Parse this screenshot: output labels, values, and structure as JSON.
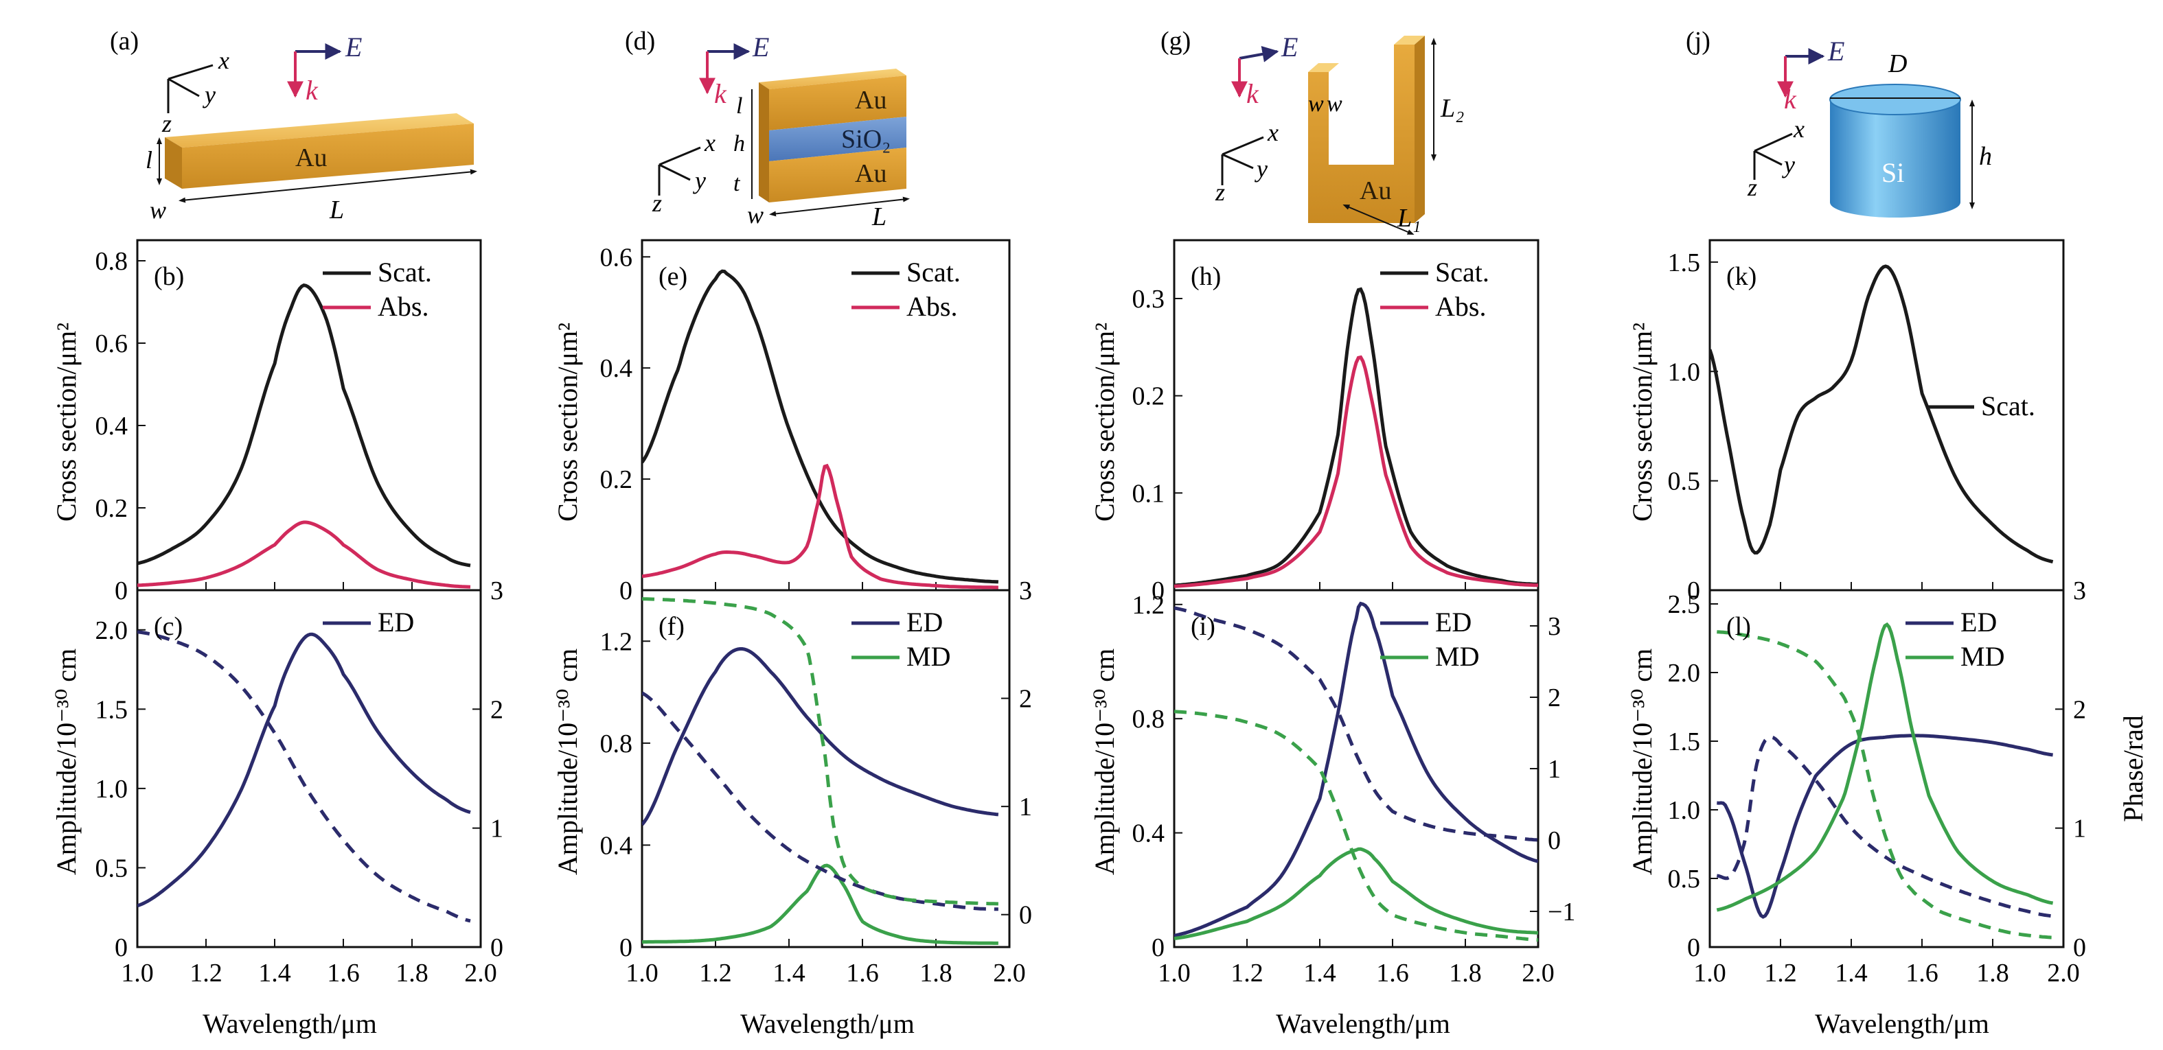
{
  "colors": {
    "gold": "#e2a73a",
    "gold_dark": "#b87d1c",
    "gold_light": "#f3c868",
    "sio2": "#5b86c8",
    "si": "#4a9fd8",
    "scat": "#1a1a1a",
    "abs": "#d12a5c",
    "ed": "#2b2b6b",
    "md": "#3aa14a",
    "e_arrow": "#2b2b6b",
    "k_arrow": "#d12a5c"
  },
  "labels": {
    "wavelength": "Wavelength/μm",
    "cross_section": "Cross section/μm²",
    "amplitude": "Amplitude/10⁻³⁰ cm",
    "phase": "Phase/rad",
    "scat": "Scat.",
    "abs": "Abs.",
    "ed": "ED",
    "md": "MD"
  },
  "schematics": [
    {
      "panel": "(a)",
      "material": "Au",
      "dims": [
        "l",
        "w",
        "L"
      ],
      "E": "E",
      "k": "k",
      "axes": [
        "x",
        "y",
        "z"
      ]
    },
    {
      "panel": "(d)",
      "materials": [
        "Au",
        "SiO₂",
        "Au"
      ],
      "dims": [
        "l",
        "h",
        "t",
        "w",
        "L"
      ],
      "E": "E",
      "k": "k",
      "axes": [
        "x",
        "y",
        "z"
      ]
    },
    {
      "panel": "(g)",
      "material": "Au",
      "dims": [
        "w",
        "w",
        "L₂",
        "L₁"
      ],
      "E": "E",
      "k": "k",
      "axes": [
        "x",
        "y",
        "z"
      ]
    },
    {
      "panel": "(j)",
      "material": "Si",
      "dims": [
        "D",
        "h"
      ],
      "E": "E",
      "k": "k",
      "axes": [
        "x",
        "y",
        "z"
      ]
    }
  ],
  "chart_data": [
    {
      "panel": "(b)",
      "type": "line",
      "xlim": [
        1.0,
        2.0
      ],
      "ylim": [
        0,
        0.85
      ],
      "xticks": [
        "1.0",
        "1.2",
        "1.4",
        "1.6",
        "1.8",
        "2.0"
      ],
      "yticks": [
        "0",
        "0.2",
        "0.4",
        "0.6",
        "0.8"
      ],
      "ylabel": "Cross section/μm²",
      "xlabel": "Wavelength/μm",
      "series": [
        {
          "name": "Scat.",
          "x": [
            1.0,
            1.1,
            1.2,
            1.3,
            1.4,
            1.45,
            1.49,
            1.55,
            1.6,
            1.7,
            1.8,
            1.9,
            1.97
          ],
          "y": [
            0.065,
            0.1,
            0.16,
            0.29,
            0.55,
            0.69,
            0.74,
            0.66,
            0.49,
            0.26,
            0.14,
            0.08,
            0.06
          ]
        },
        {
          "name": "Abs.",
          "x": [
            1.0,
            1.1,
            1.2,
            1.3,
            1.4,
            1.45,
            1.49,
            1.55,
            1.6,
            1.7,
            1.8,
            1.9,
            1.97
          ],
          "y": [
            0.012,
            0.018,
            0.03,
            0.06,
            0.11,
            0.15,
            0.165,
            0.145,
            0.11,
            0.05,
            0.025,
            0.012,
            0.008
          ]
        }
      ]
    },
    {
      "panel": "(c)",
      "type": "line",
      "xlim": [
        1.0,
        2.0
      ],
      "ylim": [
        0,
        2.25
      ],
      "y2lim": [
        0,
        3.0
      ],
      "xticks": [
        "1.0",
        "1.2",
        "1.4",
        "1.6",
        "1.8",
        "2.0"
      ],
      "yticks": [
        "0",
        "0.5",
        "1.0",
        "1.5",
        "2.0"
      ],
      "y2ticks": [
        "0",
        "1",
        "2",
        "3"
      ],
      "ylabel": "Amplitude/10⁻³⁰ cm",
      "xlabel": "Wavelength/μm",
      "series": [
        {
          "name": "ED",
          "x": [
            1.0,
            1.1,
            1.2,
            1.3,
            1.4,
            1.45,
            1.5,
            1.55,
            1.6,
            1.7,
            1.8,
            1.9,
            1.97
          ],
          "y": [
            0.26,
            0.4,
            0.62,
            0.98,
            1.52,
            1.82,
            1.97,
            1.9,
            1.72,
            1.36,
            1.1,
            0.93,
            0.85
          ]
        },
        {
          "name": "ED phase",
          "axis": "right",
          "x": [
            1.0,
            1.1,
            1.2,
            1.3,
            1.4,
            1.5,
            1.6,
            1.7,
            1.8,
            1.9,
            1.97
          ],
          "y": [
            2.65,
            2.58,
            2.45,
            2.2,
            1.8,
            1.3,
            0.9,
            0.6,
            0.42,
            0.3,
            0.22
          ]
        }
      ]
    },
    {
      "panel": "(e)",
      "type": "line",
      "xlim": [
        1.0,
        2.0
      ],
      "ylim": [
        0,
        0.63
      ],
      "xticks": [
        "1.0",
        "1.2",
        "1.4",
        "1.6",
        "1.8",
        "2.0"
      ],
      "yticks": [
        "0",
        "0.2",
        "0.4",
        "0.6"
      ],
      "ylabel": "Cross section/μm²",
      "xlabel": "Wavelength/μm",
      "series": [
        {
          "name": "Scat.",
          "x": [
            1.0,
            1.1,
            1.15,
            1.2,
            1.23,
            1.3,
            1.4,
            1.5,
            1.6,
            1.7,
            1.8,
            1.9,
            1.97
          ],
          "y": [
            0.23,
            0.4,
            0.5,
            0.56,
            0.57,
            0.5,
            0.29,
            0.14,
            0.07,
            0.04,
            0.025,
            0.018,
            0.015
          ]
        },
        {
          "name": "Abs.",
          "x": [
            1.0,
            1.1,
            1.2,
            1.25,
            1.3,
            1.4,
            1.45,
            1.48,
            1.5,
            1.53,
            1.57,
            1.65,
            1.8,
            1.97
          ],
          "y": [
            0.025,
            0.04,
            0.065,
            0.068,
            0.062,
            0.05,
            0.08,
            0.16,
            0.225,
            0.16,
            0.06,
            0.02,
            0.008,
            0.005
          ]
        }
      ]
    },
    {
      "panel": "(f)",
      "type": "line",
      "xlim": [
        1.0,
        2.0
      ],
      "ylim": [
        0,
        1.4
      ],
      "y2lim": [
        -0.3,
        3.0
      ],
      "xticks": [
        "1.0",
        "1.2",
        "1.4",
        "1.6",
        "1.8",
        "2.0"
      ],
      "yticks": [
        "0",
        "0.4",
        "0.8",
        "1.2"
      ],
      "y2ticks": [
        "0",
        "1",
        "2",
        "3"
      ],
      "ylabel": "Amplitude/10⁻³⁰ cm",
      "xlabel": "Wavelength/μm",
      "series": [
        {
          "name": "ED",
          "x": [
            1.0,
            1.1,
            1.2,
            1.27,
            1.35,
            1.45,
            1.55,
            1.65,
            1.75,
            1.85,
            1.97
          ],
          "y": [
            0.48,
            0.8,
            1.08,
            1.17,
            1.08,
            0.9,
            0.75,
            0.66,
            0.6,
            0.55,
            0.52
          ]
        },
        {
          "name": "MD",
          "x": [
            1.0,
            1.2,
            1.35,
            1.45,
            1.5,
            1.55,
            1.6,
            1.7,
            1.8,
            1.97
          ],
          "y": [
            0.02,
            0.03,
            0.08,
            0.22,
            0.32,
            0.24,
            0.1,
            0.04,
            0.02,
            0.015
          ]
        },
        {
          "name": "ED phase",
          "axis": "right",
          "x": [
            1.0,
            1.1,
            1.2,
            1.3,
            1.4,
            1.5,
            1.6,
            1.7,
            1.8,
            1.9,
            1.97
          ],
          "y": [
            2.05,
            1.7,
            1.3,
            0.9,
            0.6,
            0.4,
            0.25,
            0.15,
            0.1,
            0.06,
            0.05
          ]
        },
        {
          "name": "MD phase",
          "axis": "right",
          "x": [
            1.0,
            1.2,
            1.35,
            1.45,
            1.5,
            1.52,
            1.55,
            1.6,
            1.7,
            1.8,
            1.97
          ],
          "y": [
            2.92,
            2.88,
            2.78,
            2.45,
            1.45,
            0.85,
            0.45,
            0.25,
            0.15,
            0.12,
            0.1
          ]
        }
      ]
    },
    {
      "panel": "(h)",
      "type": "line",
      "xlim": [
        1.0,
        2.0
      ],
      "ylim": [
        0,
        0.36
      ],
      "xticks": [
        "1.0",
        "1.2",
        "1.4",
        "1.6",
        "1.8",
        "2.0"
      ],
      "yticks": [
        "0",
        "0.1",
        "0.2",
        "0.3"
      ],
      "ylabel": "Cross section/μm²",
      "xlabel": "Wavelength/μm",
      "series": [
        {
          "name": "Scat.",
          "x": [
            1.0,
            1.2,
            1.3,
            1.4,
            1.45,
            1.48,
            1.51,
            1.54,
            1.58,
            1.65,
            1.75,
            1.9,
            2.0
          ],
          "y": [
            0.005,
            0.015,
            0.03,
            0.08,
            0.16,
            0.26,
            0.31,
            0.26,
            0.15,
            0.06,
            0.025,
            0.01,
            0.006
          ]
        },
        {
          "name": "Abs.",
          "x": [
            1.0,
            1.2,
            1.3,
            1.4,
            1.45,
            1.48,
            1.51,
            1.54,
            1.58,
            1.65,
            1.75,
            1.9,
            2.0
          ],
          "y": [
            0.004,
            0.012,
            0.024,
            0.06,
            0.12,
            0.2,
            0.24,
            0.2,
            0.12,
            0.045,
            0.018,
            0.008,
            0.005
          ]
        }
      ]
    },
    {
      "panel": "(i)",
      "type": "line",
      "xlim": [
        1.0,
        2.0
      ],
      "ylim": [
        0,
        1.25
      ],
      "y2lim": [
        -1.5,
        3.5
      ],
      "xticks": [
        "1.0",
        "1.2",
        "1.4",
        "1.6",
        "1.8",
        "2.0"
      ],
      "yticks": [
        "0",
        "0.4",
        "0.8",
        "1.2"
      ],
      "y2ticks": [
        "−1",
        "0",
        "1",
        "2",
        "3"
      ],
      "ylabel": "Amplitude/10⁻³⁰ cm",
      "xlabel": "Wavelength/μm",
      "series": [
        {
          "name": "ED",
          "x": [
            1.0,
            1.2,
            1.3,
            1.4,
            1.45,
            1.5,
            1.52,
            1.55,
            1.6,
            1.7,
            1.8,
            1.9,
            2.0
          ],
          "y": [
            0.04,
            0.14,
            0.26,
            0.52,
            0.82,
            1.15,
            1.2,
            1.12,
            0.88,
            0.6,
            0.45,
            0.36,
            0.3
          ]
        },
        {
          "name": "MD",
          "x": [
            1.0,
            1.2,
            1.3,
            1.4,
            1.45,
            1.5,
            1.52,
            1.55,
            1.6,
            1.7,
            1.8,
            1.9,
            2.0
          ],
          "y": [
            0.03,
            0.09,
            0.15,
            0.25,
            0.31,
            0.34,
            0.34,
            0.31,
            0.23,
            0.14,
            0.09,
            0.06,
            0.05
          ]
        },
        {
          "name": "ED phase",
          "axis": "right",
          "x": [
            1.0,
            1.1,
            1.2,
            1.3,
            1.4,
            1.45,
            1.5,
            1.55,
            1.6,
            1.7,
            1.8,
            1.9,
            2.0
          ],
          "y": [
            3.25,
            3.1,
            2.95,
            2.7,
            2.25,
            1.8,
            1.2,
            0.7,
            0.4,
            0.2,
            0.1,
            0.05,
            0.0
          ]
        },
        {
          "name": "MD phase",
          "axis": "right",
          "x": [
            1.0,
            1.1,
            1.2,
            1.3,
            1.4,
            1.45,
            1.5,
            1.55,
            1.6,
            1.7,
            1.8,
            1.9,
            2.0
          ],
          "y": [
            1.8,
            1.75,
            1.65,
            1.45,
            1.0,
            0.4,
            -0.3,
            -0.8,
            -1.05,
            -1.2,
            -1.3,
            -1.35,
            -1.4
          ]
        }
      ]
    },
    {
      "panel": "(k)",
      "type": "line",
      "xlim": [
        1.0,
        2.0
      ],
      "ylim": [
        0,
        1.6
      ],
      "xticks": [
        "1.0",
        "1.2",
        "1.4",
        "1.6",
        "1.8",
        "2.0"
      ],
      "yticks": [
        "0",
        "0.5",
        "1.0",
        "1.5"
      ],
      "ylabel": "Cross section/μm²",
      "xlabel": "Wavelength/μm",
      "series": [
        {
          "name": "Scat.",
          "x": [
            1.0,
            1.05,
            1.1,
            1.13,
            1.17,
            1.2,
            1.25,
            1.3,
            1.35,
            1.4,
            1.45,
            1.5,
            1.55,
            1.6,
            1.7,
            1.8,
            1.9,
            1.97
          ],
          "y": [
            1.1,
            0.7,
            0.3,
            0.17,
            0.3,
            0.55,
            0.8,
            0.88,
            0.93,
            1.05,
            1.35,
            1.48,
            1.3,
            0.9,
            0.5,
            0.3,
            0.18,
            0.13
          ]
        }
      ]
    },
    {
      "panel": "(l)",
      "type": "line",
      "xlim": [
        1.0,
        2.0
      ],
      "ylim": [
        0,
        2.6
      ],
      "y2lim": [
        0,
        3.0
      ],
      "xticks": [
        "1.0",
        "1.2",
        "1.4",
        "1.6",
        "1.8",
        "2.0"
      ],
      "yticks": [
        "0",
        "0.5",
        "1.0",
        "1.5",
        "2.0",
        "2.5"
      ],
      "y2ticks": [
        "0",
        "1",
        "2",
        "3"
      ],
      "ylabel": "Amplitude/10⁻³⁰ cm",
      "y2label": "Phase/rad",
      "xlabel": "Wavelength/μm",
      "series": [
        {
          "name": "ED",
          "x": [
            1.02,
            1.05,
            1.1,
            1.15,
            1.2,
            1.25,
            1.3,
            1.4,
            1.5,
            1.6,
            1.7,
            1.8,
            1.9,
            1.97
          ],
          "y": [
            1.05,
            1.0,
            0.6,
            0.22,
            0.55,
            0.95,
            1.25,
            1.48,
            1.53,
            1.54,
            1.52,
            1.49,
            1.44,
            1.4
          ]
        },
        {
          "name": "MD",
          "x": [
            1.02,
            1.1,
            1.2,
            1.3,
            1.38,
            1.43,
            1.47,
            1.5,
            1.53,
            1.57,
            1.62,
            1.7,
            1.8,
            1.9,
            1.97
          ],
          "y": [
            0.27,
            0.35,
            0.48,
            0.7,
            1.1,
            1.6,
            2.1,
            2.35,
            2.1,
            1.6,
            1.1,
            0.7,
            0.48,
            0.38,
            0.32
          ]
        },
        {
          "name": "ED phase",
          "axis": "right",
          "x": [
            1.02,
            1.06,
            1.1,
            1.13,
            1.16,
            1.2,
            1.3,
            1.4,
            1.5,
            1.6,
            1.7,
            1.8,
            1.9,
            1.97
          ],
          "y": [
            0.6,
            0.6,
            0.9,
            1.5,
            1.75,
            1.7,
            1.4,
            1.0,
            0.75,
            0.6,
            0.48,
            0.38,
            0.3,
            0.26
          ]
        },
        {
          "name": "MD phase",
          "axis": "right",
          "x": [
            1.02,
            1.1,
            1.2,
            1.3,
            1.38,
            1.42,
            1.46,
            1.5,
            1.54,
            1.58,
            1.65,
            1.75,
            1.85,
            1.97
          ],
          "y": [
            2.65,
            2.62,
            2.55,
            2.4,
            2.1,
            1.8,
            1.3,
            0.9,
            0.6,
            0.45,
            0.3,
            0.2,
            0.12,
            0.08
          ]
        }
      ]
    }
  ]
}
